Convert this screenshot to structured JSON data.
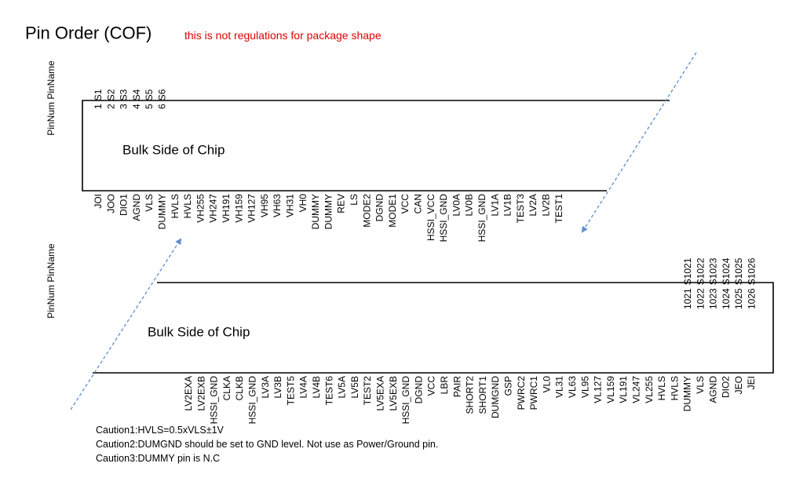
{
  "header": {
    "title": "Pin Order (COF)",
    "note": "this is not regulations for package shape"
  },
  "top_block": {
    "axis_label": "PinNum PinName",
    "label": "Bulk Side of Chip",
    "top_pins": [
      {
        "num": "1",
        "name": "S1"
      },
      {
        "num": "2",
        "name": "S2"
      },
      {
        "num": "3",
        "name": "S3"
      },
      {
        "num": "4",
        "name": "S4"
      },
      {
        "num": "5",
        "name": "S5"
      },
      {
        "num": "6",
        "name": "S6"
      }
    ],
    "bottom_pins": [
      "JOI",
      "JOO",
      "DIO1",
      "AGND",
      "VLS",
      "DUMMY",
      "HVLS",
      "HVLS",
      "VH255",
      "VH247",
      "VH191",
      "VH159",
      "VH127",
      "VH95",
      "VH63",
      "VH31",
      "VH0",
      "DUMMY",
      "DUMMY",
      "REV",
      "LS",
      "MODE2",
      "DGND",
      "MODE1",
      "VCC",
      "CAN",
      "HSSI_VCC",
      "HSSI_GND",
      "LV0A",
      "LV0B",
      "HSSI_GND",
      "LV1A",
      "LV1B",
      "TEST3",
      "LV2A",
      "LV2B",
      "TEST1"
    ]
  },
  "bottom_block": {
    "axis_label": "PinNum PinName",
    "label": "Bulk Side of Chip",
    "top_pins": [
      {
        "num": "1021",
        "name": "S1021"
      },
      {
        "num": "1022",
        "name": "S1022"
      },
      {
        "num": "1023",
        "name": "S1023"
      },
      {
        "num": "1024",
        "name": "S1024"
      },
      {
        "num": "1025",
        "name": "S1025"
      },
      {
        "num": "1026",
        "name": "S1026"
      }
    ],
    "bottom_pins": [
      "LV2EXA",
      "LV2EXB",
      "HSSI_GND",
      "CLKA",
      "CLKB",
      "HSSI_GND",
      "LV3A",
      "LV3B",
      "TEST5",
      "LV4A",
      "LV4B",
      "TEST6",
      "LV5A",
      "LV5B",
      "TEST2",
      "LV5EXA",
      "LV5EXB",
      "HSSI_GND",
      "DGND",
      "VCC",
      "LBR",
      "PAIR",
      "SHORT2",
      "SHORT1",
      "DUMGND",
      "GSP",
      "PWRC2",
      "PWRC1",
      "VL0",
      "VL31",
      "VL63",
      "VL95",
      "VL127",
      "VL159",
      "VL191",
      "VL247",
      "VL255",
      "HVLS",
      "HVLS",
      "DUMMY",
      "VLS",
      "AGND",
      "DIO2",
      "JEO",
      "JEI"
    ]
  },
  "cautions": [
    "Caution1:HVLS=0.5xVLS±1V",
    "Caution2:DUMGND should be set to GND level. Not use as Power/Ground pin.",
    "Caution3:DUMMY pin is N.C"
  ]
}
